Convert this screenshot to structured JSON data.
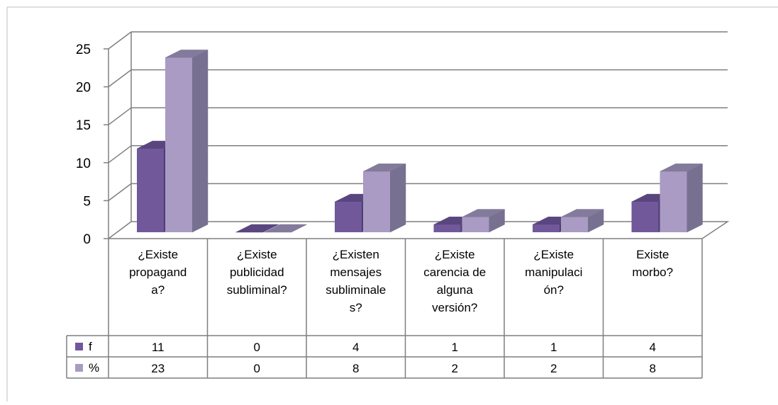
{
  "chart_data": {
    "type": "bar",
    "style": "3d-clustered-column-with-data-table",
    "categories": [
      [
        "¿Existe",
        "propagand",
        "a?"
      ],
      [
        "¿Existe",
        "publicidad",
        "subliminal?"
      ],
      [
        "¿Existen",
        "mensajes",
        "subliminale",
        "s?"
      ],
      [
        "¿Existe",
        "carencia de",
        "alguna",
        "versión?"
      ],
      [
        "¿Existe",
        "manipulaci",
        "ón?"
      ],
      [
        "Existe",
        "morbo?"
      ]
    ],
    "series": [
      {
        "name": "f",
        "values": [
          11,
          0,
          4,
          1,
          1,
          4
        ],
        "display": [
          "11",
          "0",
          "4",
          "1",
          "1",
          "4"
        ]
      },
      {
        "name": "%",
        "values": [
          23,
          0,
          8,
          2,
          2,
          8
        ],
        "display": [
          "23",
          "0",
          "8",
          "2",
          "2",
          "8"
        ]
      }
    ],
    "ylim": [
      0,
      25
    ],
    "yticks": [
      "0",
      "5",
      "10",
      "15",
      "20",
      "25"
    ],
    "grid": true,
    "legend": "data-table-left"
  },
  "colors": {
    "f_front": "#71589a",
    "f_side": "#4f3d72",
    "f_top": "#5a467e",
    "pct_front": "#a99bc3",
    "pct_side": "#777090",
    "pct_top": "#837b9b",
    "axis": "#808080",
    "grid": "#7f7f7f",
    "table_border": "#7f7f7f"
  }
}
